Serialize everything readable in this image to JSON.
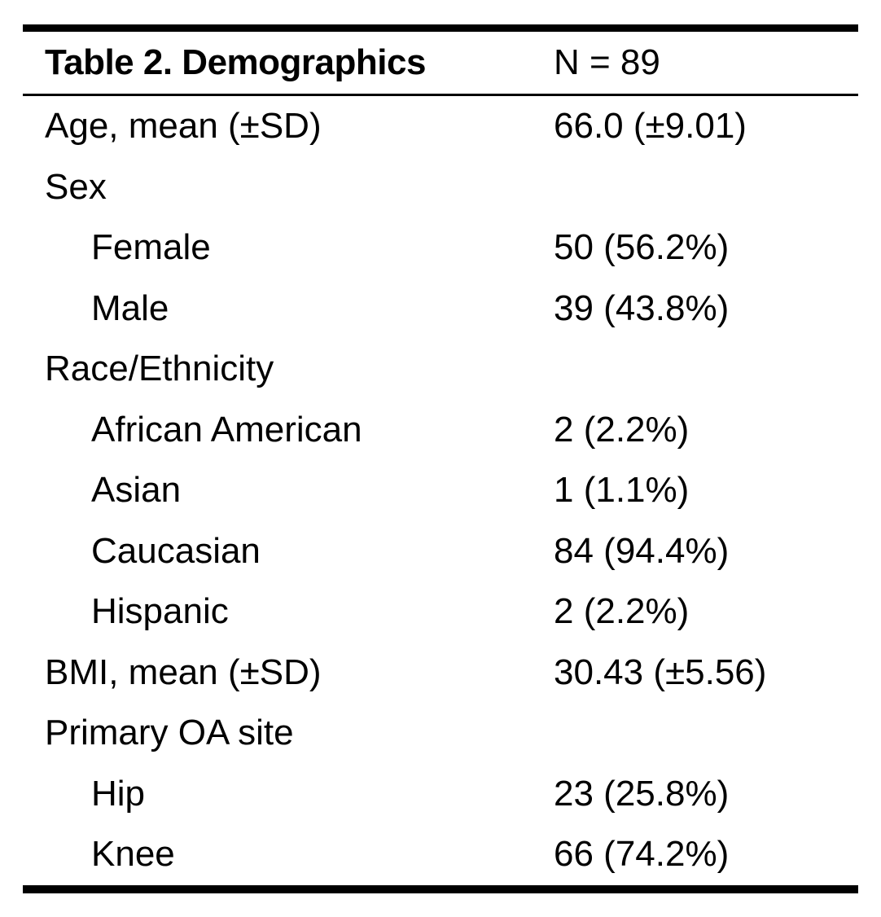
{
  "table": {
    "title": "Table 2. Demographics",
    "n_label": "N = 89",
    "rows": [
      {
        "label": "Age, mean (±SD)",
        "value": "66.0 (±9.01)",
        "indent": false
      },
      {
        "label": "Sex",
        "value": "",
        "indent": false
      },
      {
        "label": "Female",
        "value": "50 (56.2%)",
        "indent": true
      },
      {
        "label": "Male",
        "value": "39 (43.8%)",
        "indent": true
      },
      {
        "label": "Race/Ethnicity",
        "value": "",
        "indent": false
      },
      {
        "label": "African American",
        "value": "2 (2.2%)",
        "indent": true
      },
      {
        "label": "Asian",
        "value": "1 (1.1%)",
        "indent": true
      },
      {
        "label": "Caucasian",
        "value": "84 (94.4%)",
        "indent": true
      },
      {
        "label": "Hispanic",
        "value": "2 (2.2%)",
        "indent": true
      },
      {
        "label": "BMI, mean (±SD)",
        "value": "30.43 (±5.56)",
        "indent": false
      },
      {
        "label": "Primary OA site",
        "value": "",
        "indent": false
      },
      {
        "label": "Hip",
        "value": "23 (25.8%)",
        "indent": true
      },
      {
        "label": "Knee",
        "value": "66 (74.2%)",
        "indent": true
      }
    ],
    "colors": {
      "text": "#000000",
      "background": "#ffffff",
      "rule": "#000000"
    }
  }
}
